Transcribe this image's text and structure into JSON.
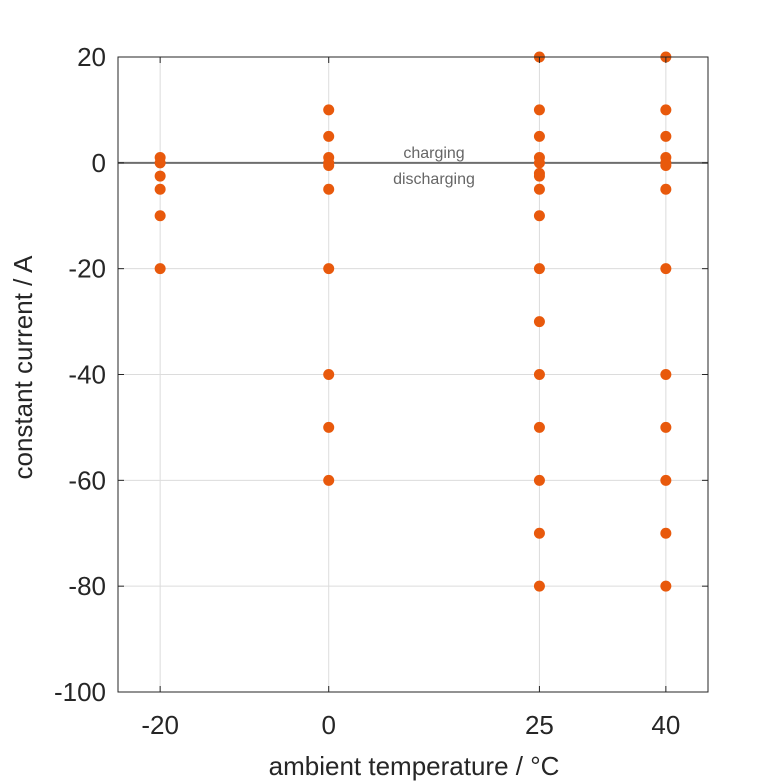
{
  "chart_data": {
    "type": "scatter",
    "xlabel": "ambient temperature / °C",
    "ylabel": "constant current / A",
    "x_ticks": [
      -20,
      0,
      25,
      40
    ],
    "x_tick_labels": [
      "-20",
      "0",
      "25",
      "40"
    ],
    "y_ticks": [
      20,
      0,
      -20,
      -40,
      -60,
      -80,
      -100
    ],
    "y_tick_labels": [
      "20",
      "0",
      "-20",
      "-40",
      "-60",
      "-80",
      "-100"
    ],
    "xlim": [
      -25,
      45
    ],
    "ylim": [
      -100,
      20
    ],
    "grid": true,
    "reference_line": {
      "y": 0,
      "above_label": "charging",
      "below_label": "discharging"
    },
    "marker_color": "#E8590C",
    "reference_line_color": "#6E6E6E",
    "series": [
      {
        "points": [
          {
            "x": -20,
            "y": 1
          },
          {
            "x": -20,
            "y": 0
          },
          {
            "x": -20,
            "y": -2.5
          },
          {
            "x": -20,
            "y": -5
          },
          {
            "x": -20,
            "y": -10
          },
          {
            "x": -20,
            "y": -20
          },
          {
            "x": 0,
            "y": 10
          },
          {
            "x": 0,
            "y": 5
          },
          {
            "x": 0,
            "y": 1
          },
          {
            "x": 0,
            "y": 0
          },
          {
            "x": 0,
            "y": -0.5
          },
          {
            "x": 0,
            "y": -5
          },
          {
            "x": 0,
            "y": -20
          },
          {
            "x": 0,
            "y": -40
          },
          {
            "x": 0,
            "y": -50
          },
          {
            "x": 0,
            "y": -60
          },
          {
            "x": 25,
            "y": 20
          },
          {
            "x": 25,
            "y": 10
          },
          {
            "x": 25,
            "y": 5
          },
          {
            "x": 25,
            "y": 1
          },
          {
            "x": 25,
            "y": 0
          },
          {
            "x": 25,
            "y": -2
          },
          {
            "x": 25,
            "y": -2.5
          },
          {
            "x": 25,
            "y": -5
          },
          {
            "x": 25,
            "y": -10
          },
          {
            "x": 25,
            "y": -20
          },
          {
            "x": 25,
            "y": -30
          },
          {
            "x": 25,
            "y": -40
          },
          {
            "x": 25,
            "y": -50
          },
          {
            "x": 25,
            "y": -60
          },
          {
            "x": 25,
            "y": -70
          },
          {
            "x": 25,
            "y": -80
          },
          {
            "x": 40,
            "y": 20
          },
          {
            "x": 40,
            "y": 10
          },
          {
            "x": 40,
            "y": 5
          },
          {
            "x": 40,
            "y": 1
          },
          {
            "x": 40,
            "y": 0
          },
          {
            "x": 40,
            "y": -0.5
          },
          {
            "x": 40,
            "y": -5
          },
          {
            "x": 40,
            "y": -20
          },
          {
            "x": 40,
            "y": -40
          },
          {
            "x": 40,
            "y": -50
          },
          {
            "x": 40,
            "y": -60
          },
          {
            "x": 40,
            "y": -70
          },
          {
            "x": 40,
            "y": -80
          }
        ]
      }
    ]
  }
}
